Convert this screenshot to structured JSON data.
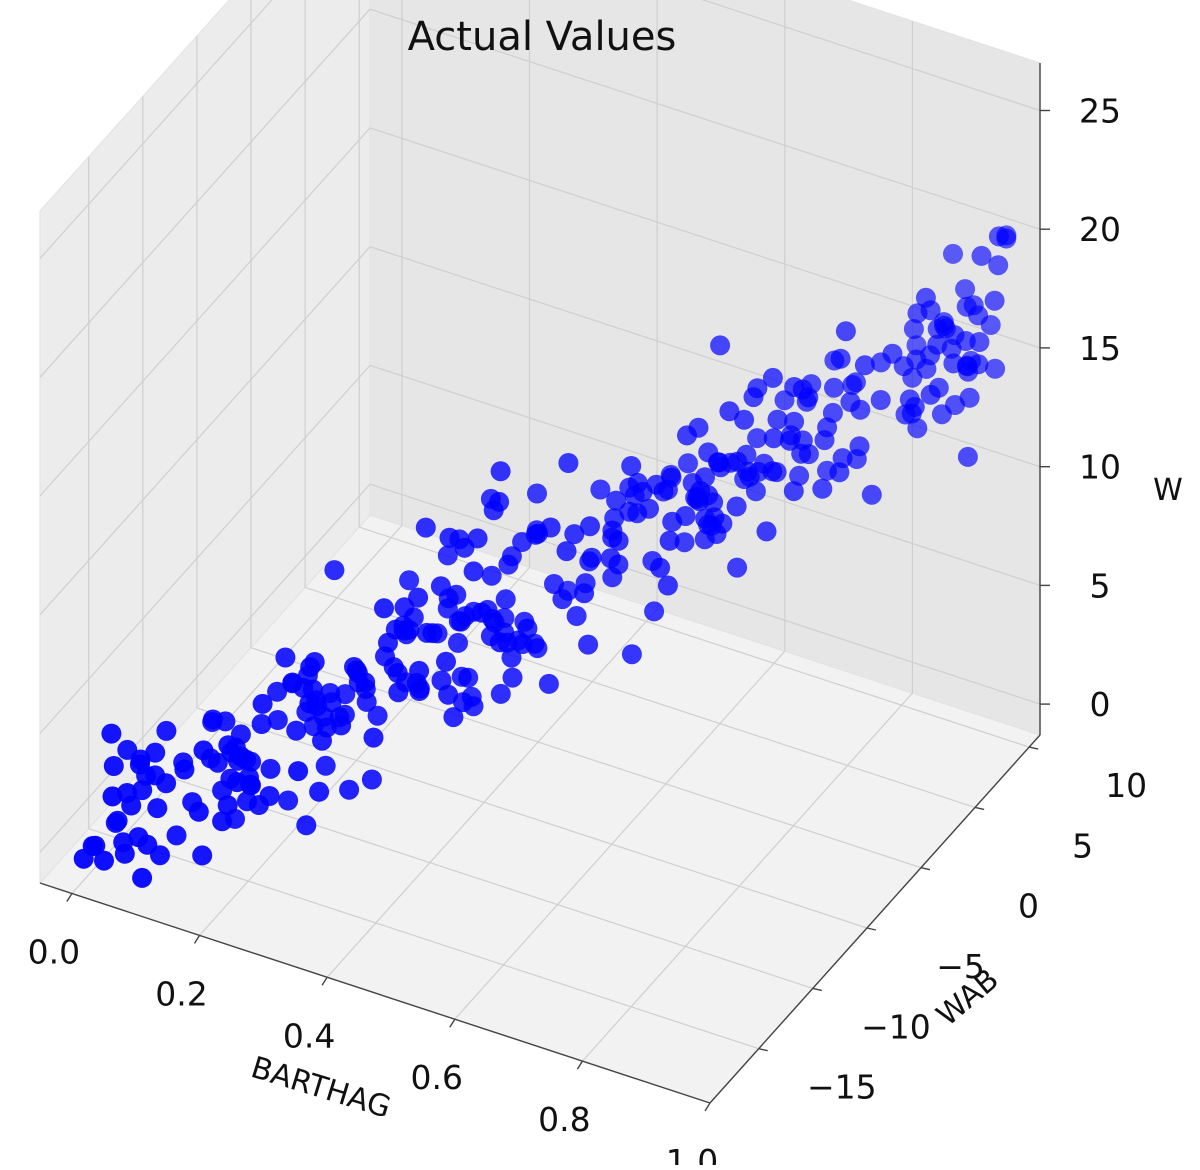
{
  "chart_data": {
    "type": "scatter",
    "projection": "3d",
    "title": "Actual Values",
    "xlabel": "BARTHAG",
    "ylabel": "WAB",
    "zlabel": "W",
    "xlim": [
      -0.05,
      1.0
    ],
    "ylim": [
      -19.5,
      11
    ],
    "zlim": [
      -1.3,
      27
    ],
    "x_ticks": [
      "0.0",
      "0.2",
      "0.4",
      "0.6",
      "0.8",
      "1.0"
    ],
    "y_ticks": [
      "−15",
      "−10",
      "−5",
      "0",
      "5",
      "10"
    ],
    "z_ticks": [
      "0",
      "5",
      "10",
      "15",
      "20",
      "25"
    ],
    "grid": true,
    "marker_color": "#0000ff",
    "pane_color": "#f2f2f2",
    "points_projected_count": 360
  }
}
